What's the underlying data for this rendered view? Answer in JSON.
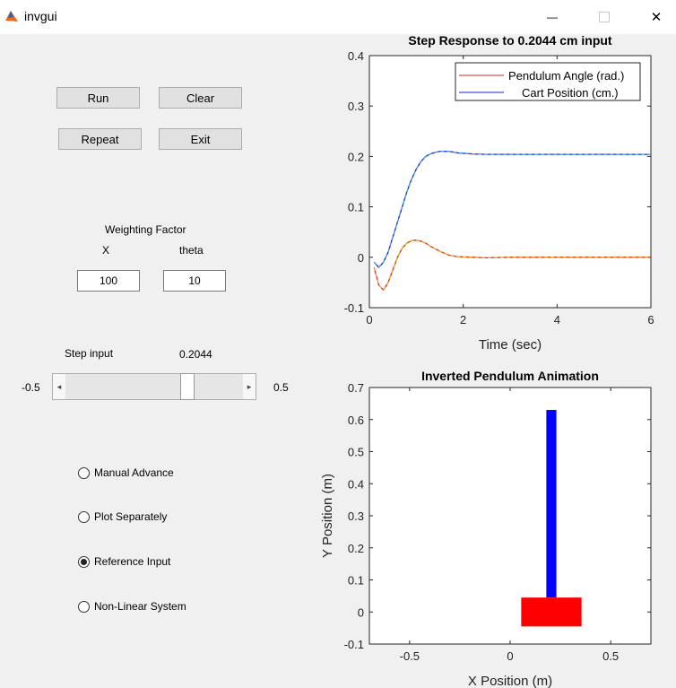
{
  "window": {
    "title": "invgui",
    "minimize_glyph": "—",
    "close_glyph": "✕"
  },
  "buttons": {
    "run": "Run",
    "clear": "Clear",
    "repeat": "Repeat",
    "exit": "Exit"
  },
  "weighting": {
    "heading": "Weighting Factor",
    "x_label": "X",
    "theta_label": "theta",
    "x_value": "100",
    "theta_value": "10"
  },
  "step": {
    "label": "Step input",
    "value_text": "0.2044",
    "min_label": "-0.5",
    "max_label": "0.5",
    "value": 0.2044,
    "min": -0.5,
    "max": 0.5
  },
  "options": [
    {
      "label": "Manual Advance",
      "selected": false
    },
    {
      "label": "Plot Separately",
      "selected": false
    },
    {
      "label": "Reference Input",
      "selected": true
    },
    {
      "label": "Non-Linear System",
      "selected": false
    }
  ],
  "chart_data": [
    {
      "type": "line",
      "title": "Step Response to 0.2044 cm input",
      "xlabel": "Time (sec)",
      "ylabel": "",
      "xlim": [
        0,
        6
      ],
      "ylim": [
        -0.1,
        0.4
      ],
      "xticks": [
        "0",
        "2",
        "4",
        "6"
      ],
      "yticks": [
        "-0.1",
        "0",
        "0.1",
        "0.2",
        "0.3",
        "0.4"
      ],
      "legend_position": "top-right",
      "series": [
        {
          "name": "Pendulum Angle (rad.)",
          "color": "#d62728",
          "x": [
            0.1,
            0.2,
            0.3,
            0.4,
            0.5,
            0.6,
            0.7,
            0.8,
            0.9,
            1.0,
            1.1,
            1.2,
            1.3,
            1.5,
            1.7,
            1.9,
            2.2,
            2.5,
            3.0,
            4.0,
            5.0,
            6.0
          ],
          "y": [
            -0.02,
            -0.055,
            -0.065,
            -0.05,
            -0.025,
            0.0,
            0.018,
            0.028,
            0.033,
            0.034,
            0.032,
            0.028,
            0.022,
            0.012,
            0.004,
            0.001,
            0.0,
            -0.001,
            0.0,
            0.0,
            0.0,
            0.0
          ]
        },
        {
          "name": "Cart Position (cm.)",
          "color": "#1f1fd6",
          "x": [
            0.1,
            0.2,
            0.3,
            0.4,
            0.5,
            0.6,
            0.7,
            0.8,
            0.9,
            1.0,
            1.1,
            1.2,
            1.3,
            1.4,
            1.5,
            1.7,
            1.9,
            2.2,
            2.5,
            3.0,
            4.0,
            5.0,
            6.0
          ],
          "y": [
            -0.01,
            -0.02,
            -0.01,
            0.01,
            0.04,
            0.07,
            0.1,
            0.13,
            0.155,
            0.175,
            0.19,
            0.2,
            0.205,
            0.208,
            0.21,
            0.21,
            0.207,
            0.205,
            0.204,
            0.204,
            0.204,
            0.204,
            0.204
          ]
        }
      ]
    },
    {
      "type": "diagram",
      "title": "Inverted Pendulum Animation",
      "xlabel": "X Position (m)",
      "ylabel": "Y Position (m)",
      "xlim": [
        -0.7,
        0.7
      ],
      "ylim": [
        -0.1,
        0.7
      ],
      "xticks": [
        "-0.5",
        "0",
        "0.5"
      ],
      "yticks": [
        "-0.1",
        "0",
        "0.1",
        "0.2",
        "0.3",
        "0.4",
        "0.5",
        "0.6",
        "0.7"
      ],
      "cart": {
        "x_min": 0.055,
        "x_max": 0.355,
        "y_min": -0.045,
        "y_max": 0.045,
        "color": "#ff0000"
      },
      "pendulum": {
        "x_min": 0.18,
        "x_max": 0.23,
        "y_min": 0.045,
        "y_max": 0.63,
        "color": "#0000ff"
      }
    }
  ]
}
